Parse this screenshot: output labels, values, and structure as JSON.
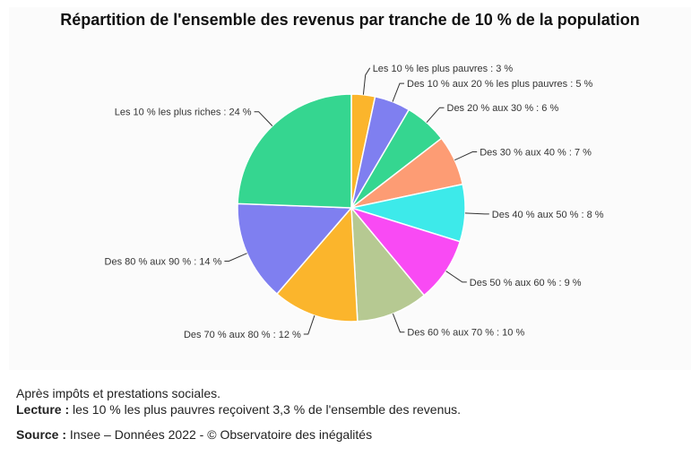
{
  "title": "Répartition de l'ensemble des revenus par tranche de 10 % de la population",
  "footer": {
    "note": "Après impôts et prestations sociales.",
    "lecture_label": "Lecture :",
    "lecture_text": " les 10 % les plus pauvres reçoivent 3,3 % de l'ensemble des revenus.",
    "source_label": "Source :",
    "source_text": " Insee – Données 2022 - © Observatoire des inégalités"
  },
  "chart_data": {
    "type": "pie",
    "title": "Répartition de l'ensemble des revenus par tranche de 10 % de la population",
    "slices": [
      {
        "label": "Les 10 % les plus pauvres : 3 %",
        "value": 3.3,
        "color": "#fbb52c"
      },
      {
        "label": "Des 10 % aux 20 % les plus pauvres : 5 %",
        "value": 5,
        "color": "#7f7ff0"
      },
      {
        "label": "Des 20 % aux 30 % : 6 %",
        "value": 6,
        "color": "#35d690"
      },
      {
        "label": "Des 30 % aux 40 % : 7 %",
        "value": 7,
        "color": "#fd9c74"
      },
      {
        "label": "Des 40 % aux 50 % : 8 %",
        "value": 8,
        "color": "#3deaea"
      },
      {
        "label": "Des 50 % aux 60 % : 9 %",
        "value": 9,
        "color": "#f94af4"
      },
      {
        "label": "Des 60 % aux 70 % : 10 %",
        "value": 10,
        "color": "#b6c992"
      },
      {
        "label": "Des 70 % aux 80 % : 12 %",
        "value": 12,
        "color": "#fbb52c"
      },
      {
        "label": "Des 80 % aux 90 % : 14 %",
        "value": 14,
        "color": "#7f7ff0"
      },
      {
        "label": "Les 10 % les plus riches : 24 %",
        "value": 24,
        "color": "#35d690"
      }
    ]
  }
}
